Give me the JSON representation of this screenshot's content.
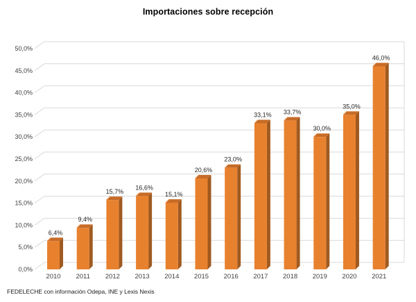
{
  "title": "Importaciones sobre recepción",
  "footer": "FEDELECHE con información Odepa, INE y Lexis Nexis",
  "chart_data": {
    "type": "bar",
    "style": "3d-column",
    "title": "Importaciones sobre recepción",
    "categories": [
      "2010",
      "2011",
      "2012",
      "2013",
      "2014",
      "2015",
      "2016",
      "2017",
      "2018",
      "2019",
      "2020",
      "2021"
    ],
    "values": [
      6.4,
      9.4,
      15.7,
      16.6,
      15.1,
      20.6,
      23.0,
      33.1,
      33.7,
      30.0,
      35.0,
      46.0
    ],
    "value_labels": [
      "6,4%",
      "9,4%",
      "15,7%",
      "16,6%",
      "15,1%",
      "20,6%",
      "23,0%",
      "33,1%",
      "33,7%",
      "30,0%",
      "35,0%",
      "46,0%"
    ],
    "xlabel": "",
    "ylabel": "",
    "ylim": [
      0,
      50
    ],
    "ytick_step": 5,
    "ytick_labels": [
      "0,0%",
      "5,0%",
      "10,0%",
      "15,0%",
      "20,0%",
      "25,0%",
      "30,0%",
      "35,0%",
      "40,0%",
      "45,0%",
      "50,0%"
    ],
    "grid": true,
    "legend": "none",
    "colors": {
      "bar_front": "#E8812E",
      "bar_side": "#A05A20",
      "bar_top": "#C76C28",
      "bar_top_highlight": "#F2A86E",
      "gridline": "#D9D9D9",
      "axis_text": "#404040",
      "label_text": "#262626"
    }
  }
}
